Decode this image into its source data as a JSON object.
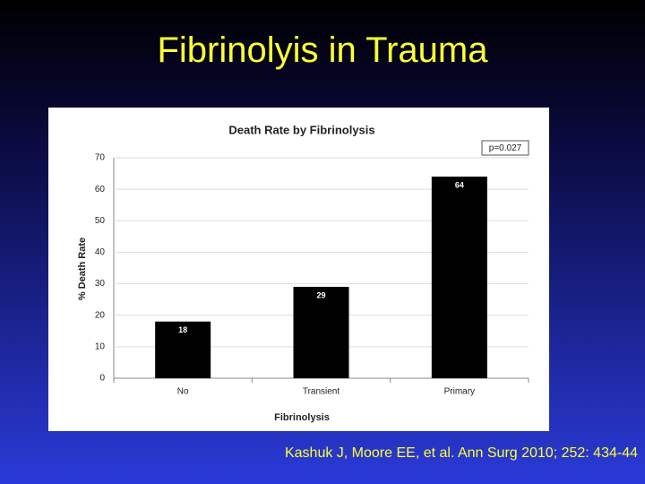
{
  "slide_title": "Fibrinolyis in Trauma",
  "citation": "Kashuk J, Moore EE, et al. Ann Surg 2010; 252: 434-44",
  "chart_data": {
    "type": "bar",
    "title": "Death Rate by Fibrinolysis",
    "annotation": "p=0.027",
    "x_label": "Fibrinolysis",
    "y_label": "% Death Rate",
    "categories": [
      "No",
      "Transient",
      "Primary"
    ],
    "values": [
      18,
      29,
      64
    ],
    "color": "#000000",
    "ylim": [
      0,
      70
    ],
    "yticks": [
      0,
      10,
      20,
      30,
      40,
      50,
      60,
      70
    ],
    "grid": true
  }
}
